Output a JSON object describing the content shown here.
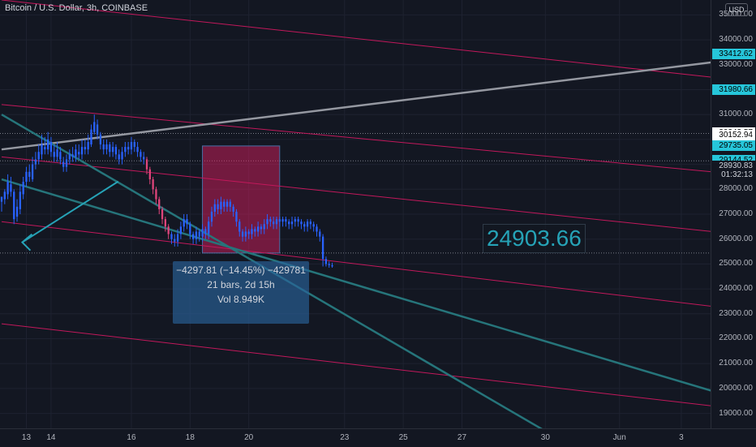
{
  "chart_title": "Bitcoin / U.S. Dollar, 3h, COINBASE",
  "currency_button": "USD",
  "price_ticks": [
    "35000.00",
    "34000.00",
    "33000.00",
    "32000.00",
    "31000.00",
    "30000.00",
    "29000.00",
    "28000.00",
    "27000.00",
    "26000.00",
    "25000.00",
    "24000.00",
    "23000.00",
    "22000.00",
    "21000.00",
    "20000.00",
    "19000.00"
  ],
  "price_tick_values": [
    35000,
    34000,
    33000,
    32000,
    31000,
    30000,
    29000,
    28000,
    27000,
    26000,
    25000,
    24000,
    23000,
    22000,
    21000,
    20000,
    19000
  ],
  "price_badges": [
    {
      "text": "33412.62",
      "value": 33412.62,
      "bg": "#26c6da",
      "fg": "#000000"
    },
    {
      "text": "31980.66",
      "value": 31980.66,
      "bg": "#26c6da",
      "fg": "#000000"
    },
    {
      "text": "30243.57",
      "value": 30243.57,
      "bg": "#ffffff",
      "fg": "#000000"
    },
    {
      "text": "30152.94",
      "value": 30152.94,
      "bg": "#ffffff",
      "fg": "#000000"
    },
    {
      "text": "29735.05",
      "value": 29735.05,
      "bg": "#26c6da",
      "fg": "#000000"
    },
    {
      "text": "29144.52",
      "value": 29144.52,
      "bg": "#26c6da",
      "fg": "#000000"
    },
    {
      "text": "28930.83",
      "value": 28930.83,
      "bg": "#131722",
      "fg": "#d1d4dc"
    },
    {
      "text": "01:32:13",
      "value": 28560,
      "bg": "#131722",
      "fg": "#d1d4dc"
    }
  ],
  "time_labels": [
    "13",
    "14",
    "16",
    "18",
    "20",
    "23",
    "25",
    "27",
    "30",
    "Jun",
    "3"
  ],
  "time_label_bars": [
    8,
    16,
    42,
    61,
    80,
    111,
    130,
    149,
    176,
    200,
    220
  ],
  "measure": {
    "line1": "−4297.81 (−14.45%) −429781",
    "line2": "21 bars, 2d 15h",
    "line3": "Vol 8.949K"
  },
  "price_callout": "24903.66",
  "chart_data": {
    "type": "candlestick",
    "x_range": [
      0,
      230
    ],
    "y_range": [
      18400,
      35600
    ],
    "candles": [
      [
        27700,
        27500,
        27700,
        27100
      ],
      [
        27600,
        27900,
        28000,
        27400
      ],
      [
        27800,
        28300,
        28600,
        27600
      ],
      [
        28200,
        27900,
        28500,
        27700
      ],
      [
        27900,
        26800,
        28000,
        26600
      ],
      [
        26900,
        27300,
        27600,
        26700
      ],
      [
        27200,
        27900,
        28200,
        27000
      ],
      [
        27800,
        28300,
        28500,
        27600
      ],
      [
        28300,
        28700,
        28900,
        28100
      ],
      [
        28700,
        28500,
        29000,
        28300
      ],
      [
        28400,
        29000,
        29300,
        28300
      ],
      [
        29000,
        29200,
        29500,
        28800
      ],
      [
        29200,
        29500,
        29800,
        29000
      ],
      [
        29400,
        29800,
        30200,
        29200
      ],
      [
        29700,
        29600,
        30100,
        29400
      ],
      [
        29600,
        30000,
        30300,
        29400
      ],
      [
        29900,
        29500,
        30100,
        29300
      ],
      [
        29500,
        29300,
        29800,
        29100
      ],
      [
        29300,
        29600,
        29900,
        29100
      ],
      [
        29500,
        29200,
        29700,
        29000
      ],
      [
        29100,
        28900,
        29300,
        28700
      ],
      [
        28900,
        29200,
        29400,
        28700
      ],
      [
        29200,
        29400,
        29600,
        29000
      ],
      [
        29400,
        29300,
        29700,
        29100
      ],
      [
        29300,
        29600,
        29800,
        29100
      ],
      [
        29500,
        29400,
        29800,
        29200
      ],
      [
        29400,
        29700,
        30000,
        29200
      ],
      [
        29700,
        29600,
        30000,
        29400
      ],
      [
        29600,
        29900,
        30200,
        29400
      ],
      [
        29800,
        30400,
        30600,
        29700
      ],
      [
        30300,
        30700,
        31000,
        30200
      ],
      [
        30600,
        30200,
        30800,
        30000
      ],
      [
        30200,
        29800,
        30300,
        29600
      ],
      [
        29800,
        29600,
        30000,
        29400
      ],
      [
        29600,
        29800,
        30000,
        29400
      ],
      [
        29800,
        29500,
        29900,
        29300
      ],
      [
        29500,
        29700,
        29900,
        29300
      ],
      [
        29700,
        29400,
        29800,
        29200
      ],
      [
        29400,
        29200,
        29600,
        29000
      ],
      [
        29200,
        29500,
        29700,
        29000
      ],
      [
        29500,
        29700,
        29900,
        29300
      ],
      [
        29700,
        29600,
        29900,
        29400
      ],
      [
        29600,
        29900,
        30100,
        29400
      ],
      [
        29900,
        29700,
        30000,
        29500
      ],
      [
        29700,
        29500,
        29900,
        29300
      ],
      [
        29500,
        29300,
        29600,
        29100
      ],
      [
        29300,
        29200,
        29500,
        29000
      ],
      [
        29200,
        28800,
        29300,
        28600
      ],
      [
        28800,
        28400,
        28900,
        28200
      ],
      [
        28400,
        28000,
        28500,
        27800
      ],
      [
        28000,
        27600,
        28100,
        27400
      ],
      [
        27600,
        27200,
        27700,
        27000
      ],
      [
        27200,
        26800,
        27300,
        26600
      ],
      [
        26800,
        26500,
        26900,
        26300
      ],
      [
        26500,
        26200,
        26600,
        26000
      ],
      [
        26200,
        26000,
        26300,
        25800
      ],
      [
        26000,
        25900,
        26200,
        25700
      ],
      [
        25900,
        26200,
        26400,
        25700
      ],
      [
        26200,
        26500,
        26700,
        26000
      ],
      [
        26500,
        26800,
        27000,
        26300
      ],
      [
        26800,
        26600,
        27000,
        26400
      ],
      [
        26600,
        26200,
        26700,
        26000
      ],
      [
        26200,
        26000,
        26300,
        25800
      ],
      [
        26000,
        26300,
        26500,
        25800
      ],
      [
        26300,
        26100,
        26400,
        25900
      ],
      [
        26100,
        26400,
        26600,
        25900
      ],
      [
        26400,
        26200,
        26500,
        26000
      ],
      [
        26200,
        26700,
        26900,
        26000
      ],
      [
        26700,
        27100,
        27300,
        26500
      ],
      [
        27100,
        27400,
        27600,
        26900
      ],
      [
        27400,
        27200,
        27600,
        27000
      ],
      [
        27200,
        27500,
        27700,
        27000
      ],
      [
        27500,
        27300,
        27600,
        27100
      ],
      [
        27300,
        27500,
        27600,
        27100
      ],
      [
        27500,
        27300,
        27600,
        27100
      ],
      [
        27300,
        27100,
        27400,
        26900
      ],
      [
        27100,
        26700,
        27200,
        26500
      ],
      [
        26700,
        26300,
        26800,
        26100
      ],
      [
        26300,
        26100,
        26400,
        25900
      ],
      [
        26100,
        26300,
        26500,
        25900
      ],
      [
        26300,
        26200,
        26400,
        26000
      ],
      [
        26200,
        26400,
        26600,
        26000
      ],
      [
        26400,
        26300,
        26500,
        26100
      ],
      [
        26300,
        26500,
        26700,
        26100
      ],
      [
        26500,
        26400,
        26600,
        26200
      ],
      [
        26400,
        26600,
        26800,
        26200
      ],
      [
        26600,
        26800,
        27000,
        26400
      ],
      [
        26800,
        26700,
        26900,
        26500
      ],
      [
        26700,
        26600,
        26900,
        26400
      ],
      [
        26600,
        26800,
        26900,
        26400
      ],
      [
        26800,
        26700,
        26900,
        26500
      ],
      [
        26700,
        26800,
        26900,
        26500
      ],
      [
        26800,
        26700,
        26900,
        26500
      ],
      [
        26700,
        26600,
        26800,
        26400
      ],
      [
        26600,
        26700,
        26900,
        26400
      ],
      [
        26700,
        26800,
        26900,
        26500
      ],
      [
        26800,
        26700,
        26900,
        26500
      ],
      [
        26700,
        26600,
        26800,
        26400
      ],
      [
        26600,
        26500,
        26700,
        26300
      ],
      [
        26500,
        26700,
        26800,
        26300
      ],
      [
        26700,
        26600,
        26800,
        26400
      ],
      [
        26600,
        26500,
        26700,
        26300
      ],
      [
        26500,
        26300,
        26600,
        26100
      ],
      [
        26300,
        26100,
        26400,
        25900
      ],
      [
        26100,
        25200,
        26200,
        24900
      ],
      [
        25200,
        25000,
        25300,
        24900
      ],
      [
        25000,
        24950,
        25100,
        24850
      ],
      [
        24950,
        24904,
        25050,
        24850
      ]
    ],
    "first_red_index": 47,
    "drawn_lines": [
      {
        "color": "#c2185b",
        "from": [
          0,
          35600
        ],
        "to": [
          230,
          32500
        ]
      },
      {
        "color": "#c2185b",
        "from": [
          0,
          31400
        ],
        "to": [
          230,
          28700
        ]
      },
      {
        "color": "#c2185b",
        "from": [
          0,
          29300
        ],
        "to": [
          230,
          26300
        ]
      },
      {
        "color": "#c2185b",
        "from": [
          0,
          26700
        ],
        "to": [
          230,
          23300
        ]
      },
      {
        "color": "#c2185b",
        "from": [
          0,
          22600
        ],
        "to": [
          230,
          19300
        ]
      },
      {
        "color": "#9598a1",
        "from": [
          0,
          29600
        ],
        "to": [
          230,
          33100
        ]
      },
      {
        "color": "#26757b",
        "from": [
          0,
          31000
        ],
        "to": [
          180,
          18000
        ]
      },
      {
        "color": "#26757b",
        "from": [
          0,
          28400
        ],
        "to": [
          230,
          19900
        ]
      }
    ],
    "measure_region": {
      "x_from": 65,
      "x_to": 90,
      "y_from": 29740,
      "y_to": 25440
    },
    "dotted_levels": [
      30240,
      29140,
      25440
    ],
    "arrow": {
      "from": [
        22,
        27500
      ],
      "to": [
        3,
        26000
      ]
    }
  }
}
